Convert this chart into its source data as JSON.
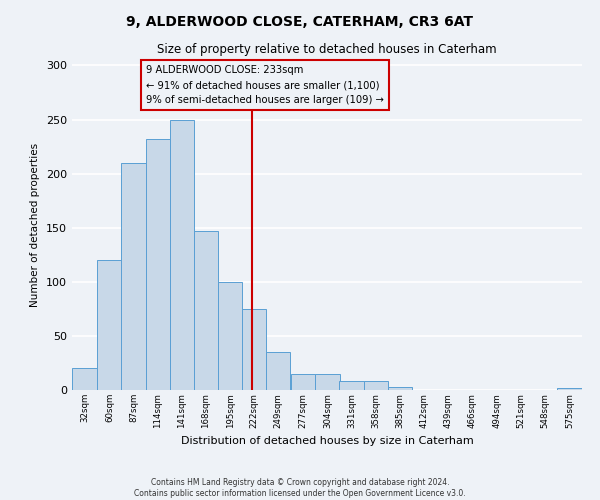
{
  "title": "9, ALDERWOOD CLOSE, CATERHAM, CR3 6AT",
  "subtitle": "Size of property relative to detached houses in Caterham",
  "xlabel": "Distribution of detached houses by size in Caterham",
  "ylabel": "Number of detached properties",
  "bar_values": [
    20,
    120,
    210,
    232,
    250,
    147,
    100,
    75,
    35,
    15,
    15,
    8,
    8,
    3,
    0,
    0,
    0,
    0,
    0,
    0,
    2
  ],
  "bin_labels": [
    "32sqm",
    "60sqm",
    "87sqm",
    "114sqm",
    "141sqm",
    "168sqm",
    "195sqm",
    "222sqm",
    "249sqm",
    "277sqm",
    "304sqm",
    "331sqm",
    "358sqm",
    "385sqm",
    "412sqm",
    "439sqm",
    "466sqm",
    "494sqm",
    "521sqm",
    "548sqm",
    "575sqm"
  ],
  "bin_edges": [
    32,
    60,
    87,
    114,
    141,
    168,
    195,
    222,
    249,
    277,
    304,
    331,
    358,
    385,
    412,
    439,
    466,
    494,
    521,
    548,
    575
  ],
  "bar_color": "#c8d8e8",
  "bar_edge_color": "#5a9fd4",
  "property_line_x": 233,
  "property_line_color": "#cc0000",
  "annotation_text": "9 ALDERWOOD CLOSE: 233sqm\n← 91% of detached houses are smaller (1,100)\n9% of semi-detached houses are larger (109) →",
  "annotation_box_color": "#cc0000",
  "ylim": [
    0,
    305
  ],
  "yticks": [
    0,
    50,
    100,
    150,
    200,
    250,
    300
  ],
  "background_color": "#eef2f7",
  "grid_color": "#ffffff",
  "footer_line1": "Contains HM Land Registry data © Crown copyright and database right 2024.",
  "footer_line2": "Contains public sector information licensed under the Open Government Licence v3.0."
}
